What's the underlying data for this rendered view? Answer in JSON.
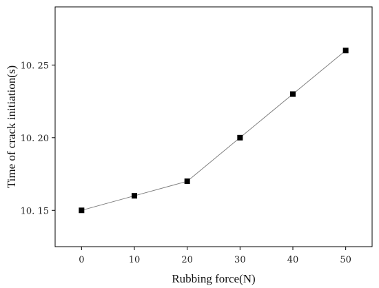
{
  "chart_data": {
    "type": "line",
    "title": "",
    "xlabel": "Rubbing force(N)",
    "ylabel": "Time of crack initiation(s)",
    "x": [
      0,
      10,
      20,
      30,
      40,
      50
    ],
    "series": [
      {
        "values": [
          10.15,
          10.16,
          10.17,
          10.2,
          10.23,
          10.26
        ]
      }
    ],
    "xlim": [
      -5,
      55
    ],
    "ylim": [
      10.125,
      10.29
    ],
    "xticks": [
      0,
      10,
      20,
      30,
      40,
      50
    ],
    "xtick_labels": [
      "0",
      "10",
      "20",
      "30",
      "40",
      "50"
    ],
    "yticks": [
      10.15,
      10.2,
      10.25
    ],
    "ytick_labels": [
      "10. 15",
      "10. 20",
      "10. 25"
    ],
    "grid": false,
    "legend": "none",
    "marker": "square",
    "line_color": "#808080",
    "marker_color": "#000000"
  }
}
